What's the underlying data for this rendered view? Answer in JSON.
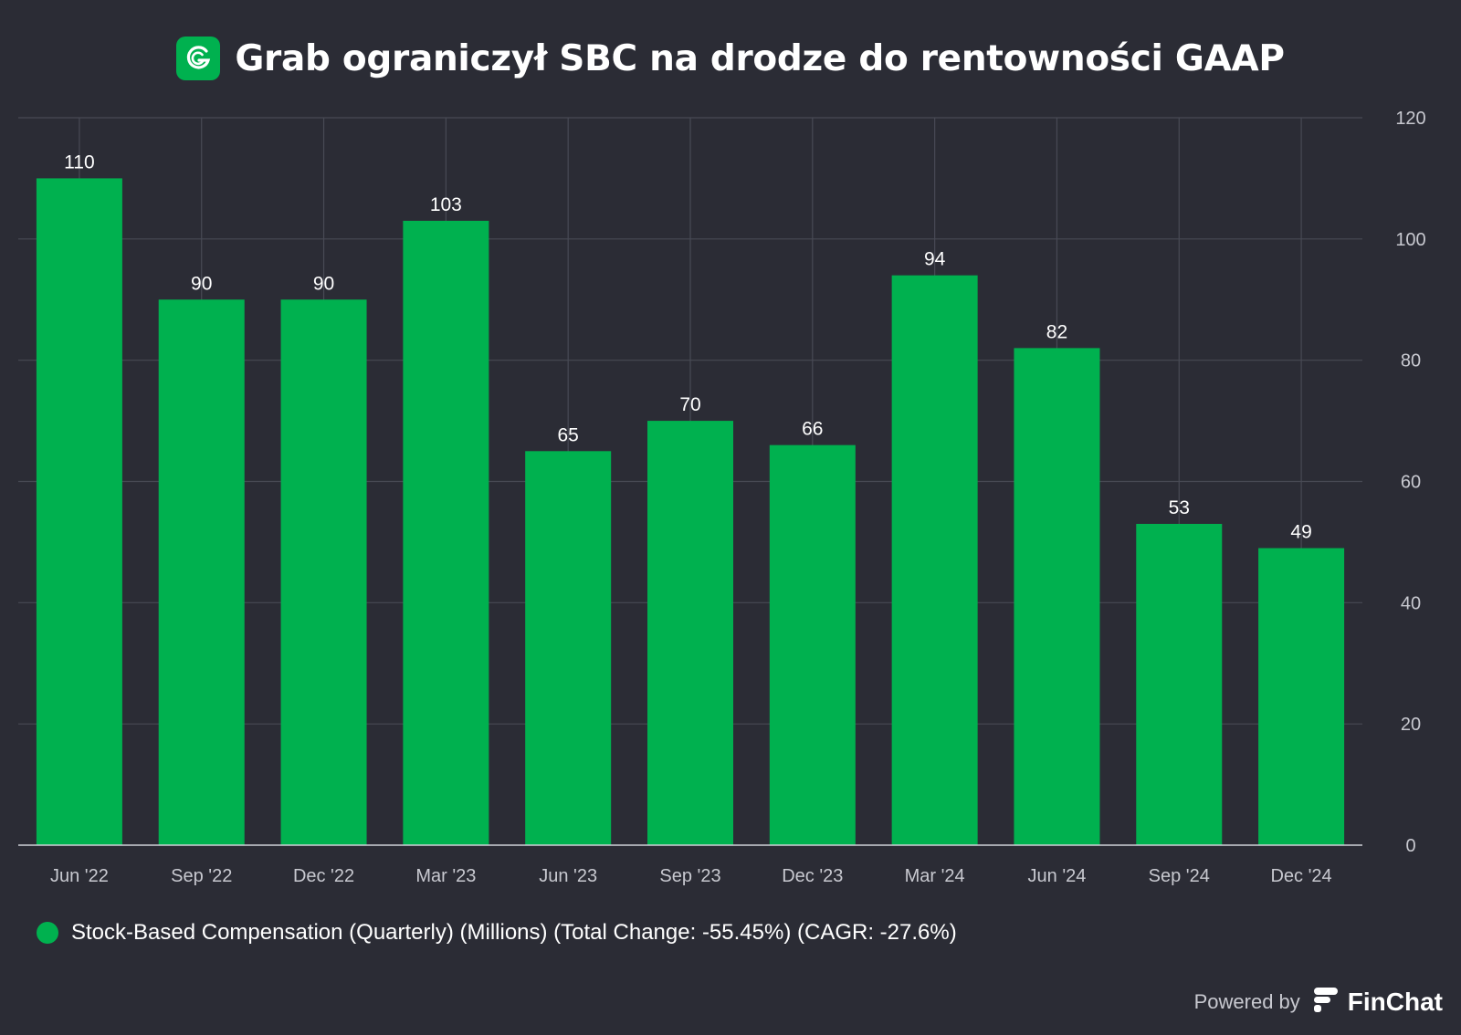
{
  "header": {
    "title": "Grab ograniczył SBC na drodze do rentowności GAAP",
    "logo_icon": "grab-logo-icon"
  },
  "legend": {
    "label": "Stock-Based Compensation (Quarterly) (Millions) (Total Change: -55.45%) (CAGR: -27.6%)",
    "color": "#00b14f"
  },
  "footer": {
    "powered_by": "Powered by",
    "brand": "FinChat",
    "brand_icon": "finchat-logo-icon"
  },
  "colors": {
    "background": "#2b2c35",
    "bar": "#00b14f",
    "grid": "#484a55",
    "axis_text": "#c8c9d0"
  },
  "chart_data": {
    "type": "bar",
    "title": "Grab ograniczył SBC na drodze do rentowności GAAP",
    "categories": [
      "Jun '22",
      "Sep '22",
      "Dec '22",
      "Mar '23",
      "Jun '23",
      "Sep '23",
      "Dec '23",
      "Mar '24",
      "Jun '24",
      "Sep '24",
      "Dec '24"
    ],
    "series": [
      {
        "name": "Stock-Based Compensation (Quarterly) (Millions) (Total Change: -55.45%) (CAGR: -27.6%)",
        "values": [
          110,
          90,
          90,
          103,
          65,
          70,
          66,
          94,
          82,
          53,
          49
        ]
      }
    ],
    "data_labels": [
      "110",
      "90",
      "90",
      "103",
      "65",
      "70",
      "66",
      "94",
      "82",
      "53",
      "49"
    ],
    "y_ticks": [
      "0",
      "20",
      "40",
      "60",
      "80",
      "100",
      "120"
    ],
    "ylim": [
      0,
      120
    ],
    "y_axis_side": "right",
    "grid": true,
    "legend_position": "bottom-left",
    "xlabel": "",
    "ylabel": ""
  }
}
